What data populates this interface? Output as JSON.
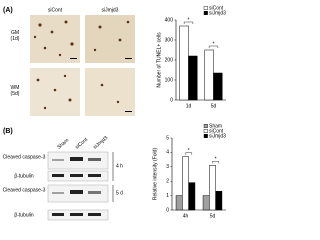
{
  "panel_labels": [
    "(A)",
    "(B)"
  ],
  "micrographs": {
    "columns": [
      "siCont",
      "siJmjd3"
    ],
    "rows": [
      "GM\n(1d)",
      "WM\n(5d)"
    ]
  },
  "blot": {
    "columns": [
      "Sham",
      "siCont",
      "siJmjd3"
    ],
    "rows": [
      "Cleaved caspase-3",
      "β-tubulin",
      "Cleaved caspase-3",
      "β-tubulin"
    ],
    "times": [
      "4 h",
      "5 d"
    ]
  },
  "chart_data": [
    {
      "type": "bar",
      "ylabel": "Number of TUNEL+ cells",
      "categories": [
        "1d",
        "5d"
      ],
      "series": [
        {
          "name": "siCont",
          "color": "#ffffff",
          "values": [
            370,
            250
          ]
        },
        {
          "name": "siJmjd3",
          "color": "#000000",
          "values": [
            220,
            135
          ]
        }
      ],
      "ylim": [
        0,
        400
      ],
      "yticks": [
        0,
        100,
        200,
        300,
        400
      ],
      "legend": "top-right",
      "annotations": [
        "*",
        "*"
      ]
    },
    {
      "type": "bar",
      "ylabel": "Relative intensity (Fold)",
      "categories": [
        "4h",
        "5d"
      ],
      "series": [
        {
          "name": "Sham",
          "color": "#a0a0a0",
          "values": [
            1,
            1
          ]
        },
        {
          "name": "siCont",
          "color": "#ffffff",
          "values": [
            3.7,
            3.1
          ]
        },
        {
          "name": "siJmjd3",
          "color": "#000000",
          "values": [
            1.9,
            1.3
          ]
        }
      ],
      "ylim": [
        0,
        5
      ],
      "yticks": [
        0,
        1,
        2,
        3,
        4,
        5
      ],
      "legend": "top-right",
      "annotations": [
        "*",
        "*"
      ]
    }
  ]
}
